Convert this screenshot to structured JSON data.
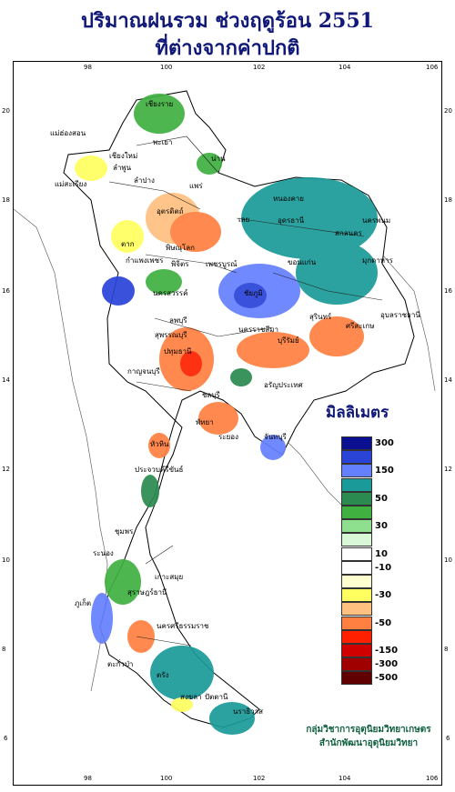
{
  "title": {
    "line1": "ปริมาณฝนรวม ช่วงฤดูร้อน 2551",
    "line2": "ที่ต่างจากค่าปกติ"
  },
  "axes": {
    "lon_ticks": [
      "98",
      "100",
      "102",
      "104",
      "106"
    ],
    "lat_ticks": [
      "20",
      "18",
      "16",
      "14",
      "12",
      "10",
      "8",
      "6"
    ]
  },
  "places": [
    {
      "name": "เชียงราย"
    },
    {
      "name": "แม่ฮ่องสอน"
    },
    {
      "name": "พะเยา"
    },
    {
      "name": "เชียงใหม่"
    },
    {
      "name": "ลำพูน"
    },
    {
      "name": "น่าน"
    },
    {
      "name": "ลำปาง"
    },
    {
      "name": "แพร่"
    },
    {
      "name": "แม่สะเรียง"
    },
    {
      "name": "อุตรดิตถ์"
    },
    {
      "name": "หนองคาย"
    },
    {
      "name": "อุดรธานี"
    },
    {
      "name": "นครพนม"
    },
    {
      "name": "สกลนคร"
    },
    {
      "name": "เลย"
    },
    {
      "name": "ตาก"
    },
    {
      "name": "พิษณุโลก"
    },
    {
      "name": "กำแพงเพชร"
    },
    {
      "name": "พิจิตร"
    },
    {
      "name": "เพชรบูรณ์"
    },
    {
      "name": "ขอนแก่น"
    },
    {
      "name": "มุกดาหาร"
    },
    {
      "name": "นครสวรรค์"
    },
    {
      "name": "ชัยภูมิ"
    },
    {
      "name": "อุบลราชธานี"
    },
    {
      "name": "ลพบุรี"
    },
    {
      "name": "สุรินทร์"
    },
    {
      "name": "ศรีสะเกษ"
    },
    {
      "name": "นครราชสีมา"
    },
    {
      "name": "สุพรรณบุรี"
    },
    {
      "name": "บุรีรัมย์"
    },
    {
      "name": "ปทุมธานี"
    },
    {
      "name": "กาญจนบุรี"
    },
    {
      "name": "อรัญประเทศ"
    },
    {
      "name": "ชลบุรี"
    },
    {
      "name": "พัทยา"
    },
    {
      "name": "ระยอง"
    },
    {
      "name": "จันทบุรี"
    },
    {
      "name": "หัวหิน"
    },
    {
      "name": "ประจวบคีรีขันธ์"
    },
    {
      "name": "ชุมพร"
    },
    {
      "name": "ระนอง"
    },
    {
      "name": "เกาะสมุย"
    },
    {
      "name": "สุราษฎร์ธานี"
    },
    {
      "name": "ภูเก็ต"
    },
    {
      "name": "นครศรีธรรมราช"
    },
    {
      "name": "ตะกั่วป่า"
    },
    {
      "name": "ตรัง"
    },
    {
      "name": "สงขลา"
    },
    {
      "name": "ปัตตานี"
    },
    {
      "name": "นราธิวาส"
    }
  ],
  "legend": {
    "title": "มิลลิเมตร",
    "bins": [
      {
        "color": "#0a1090",
        "label": "300"
      },
      {
        "color": "#2a44d8",
        "label": ""
      },
      {
        "color": "#6480ff",
        "label": "150"
      },
      {
        "color": "#1a9a98",
        "label": ""
      },
      {
        "color": "#2a8a50",
        "label": "50"
      },
      {
        "color": "#40b040",
        "label": ""
      },
      {
        "color": "#8ee08e",
        "label": "30"
      },
      {
        "color": "#d8f8d8",
        "label": ""
      },
      {
        "color": "#ffffff",
        "label": "10"
      },
      {
        "color": "#ffffff",
        "label": "-10"
      },
      {
        "color": "#ffffd0",
        "label": ""
      },
      {
        "color": "#ffff60",
        "label": "-30"
      },
      {
        "color": "#ffc080",
        "label": ""
      },
      {
        "color": "#ff8040",
        "label": "-50"
      },
      {
        "color": "#ff2000",
        "label": ""
      },
      {
        "color": "#d00000",
        "label": "-150"
      },
      {
        "color": "#a00000",
        "label": "-300"
      },
      {
        "color": "#600000",
        "label": "-500"
      }
    ]
  },
  "credit": {
    "line1": "กลุ่มวิชาการอุตุนิยมวิทยาเกษตร",
    "line2": "สำนักพัฒนาอุตุนิยมวิทยา"
  },
  "colors": {
    "title": "#101878",
    "credit": "#106040"
  }
}
